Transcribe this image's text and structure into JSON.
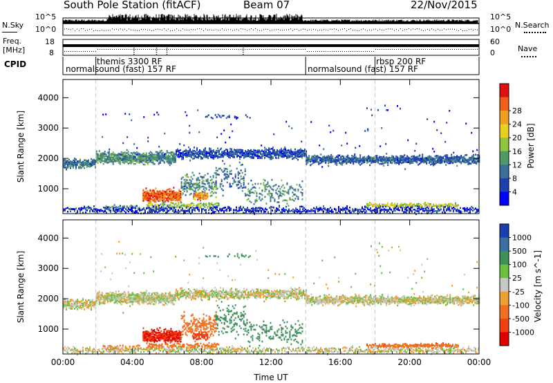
{
  "header": {
    "station": "South Pole Station (fitACF)",
    "beam": "Beam 07",
    "date": "22/Nov/2015"
  },
  "top_panels": {
    "nsky": {
      "left_label": "N.Sky",
      "left_ticks": [
        "10^5",
        "10^0"
      ],
      "right_ticks": [
        "10^5",
        "10^0"
      ],
      "right_label": "N.Search"
    },
    "freq": {
      "left_label_1": "Freq.",
      "left_label_2": "[MHz]",
      "left_ticks": [
        "18",
        "8"
      ],
      "right_ticks": [
        "60",
        "0"
      ],
      "right_label": "Nave"
    },
    "cpid": {
      "label": "CPID",
      "modes": [
        {
          "text": "themis 3300 RF",
          "start_hour": 1.9
        },
        {
          "text": "normalsound (fast) 157 RF",
          "start_hour": 0.0
        },
        {
          "text": "normalsound (fast) 157 RF",
          "start_hour": 14.0
        },
        {
          "text": "rbsp 200 RF",
          "start_hour": 18.0
        }
      ],
      "mode_change_hours": [
        1.9,
        14.0,
        18.0
      ]
    }
  },
  "chart_data": [
    {
      "type": "heatmap",
      "name": "power",
      "ylabel": "Slant Range [km]",
      "xlabel": "Time UT",
      "y_ticks": [
        "1000",
        "2000",
        "3000",
        "4000"
      ],
      "x_ticks": [
        "00:00",
        "04:00",
        "08:00",
        "12:00",
        "16:00",
        "20:00",
        "00:00"
      ],
      "xlim_hours": [
        0,
        24
      ],
      "ylim_km": [
        180,
        4600
      ],
      "colorbar": {
        "label": "Power [dB]",
        "ticks": [
          "4",
          "8",
          "12",
          "16",
          "20",
          "24",
          "28"
        ],
        "colors": [
          "#0000ff",
          "#1f3fb0",
          "#3a6f9a",
          "#4f9a6a",
          "#8fc43c",
          "#e8d020",
          "#f0a020",
          "#f06018",
          "#e01010"
        ]
      }
    },
    {
      "type": "heatmap",
      "name": "velocity",
      "ylabel": "Slant Range [km]",
      "xlabel": "Time UT",
      "y_ticks": [
        "1000",
        "2000",
        "3000",
        "4000"
      ],
      "x_ticks": [
        "00:00",
        "04:00",
        "08:00",
        "12:00",
        "16:00",
        "20:00",
        "00:00"
      ],
      "xlim_hours": [
        0,
        24
      ],
      "ylim_km": [
        180,
        4600
      ],
      "colorbar": {
        "label": "Velocity [m s^-1]",
        "ticks": [
          "1000",
          "500",
          "100",
          "25",
          "-25",
          "-100",
          "-500",
          "-1000"
        ],
        "colors": [
          "#1a3fb0",
          "#3a70a0",
          "#3e8f5a",
          "#6cc040",
          "#c8c8c8",
          "#f0a030",
          "#f07020",
          "#f04010",
          "#e00000"
        ]
      }
    }
  ],
  "colors": {
    "guide_line": "#c8c8c8",
    "frame": "#000000"
  }
}
